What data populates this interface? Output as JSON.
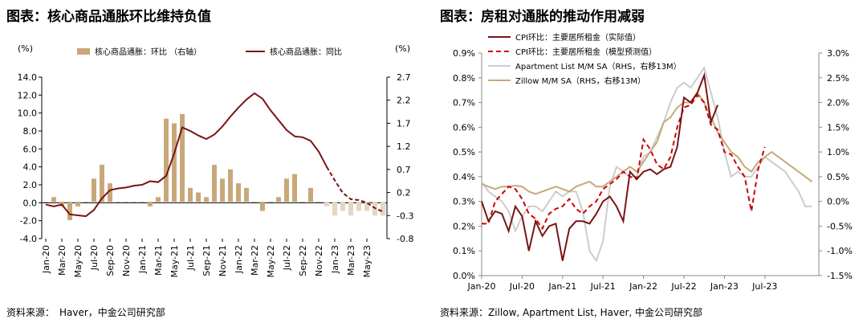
{
  "left": {
    "title": "图表：核心商品通胀环比维持负值",
    "source": "资料来源：　Haver，中金公司研究部",
    "chart_data": {
      "type": "bar+line",
      "unit_left": "(%)",
      "unit_right": "(%)",
      "ylim_left": [
        -4,
        14
      ],
      "yticks_left": [
        "14.0",
        "12.0",
        "10.0",
        "8.0",
        "6.0",
        "4.0",
        "2.0",
        "0.0",
        "-2.0",
        "-4.0"
      ],
      "yticks_left_values": [
        14,
        12,
        10,
        8,
        6,
        4,
        2,
        0,
        -2,
        -4
      ],
      "ylim_right": [
        -0.8,
        2.7
      ],
      "yticks_right": [
        "2.7",
        "2.2",
        "1.7",
        "1.2",
        "0.7",
        "0.2",
        "-0.3",
        "-0.8"
      ],
      "yticks_right_values": [
        2.7,
        2.2,
        1.7,
        1.2,
        0.7,
        0.2,
        -0.3,
        -0.8
      ],
      "x_labels": [
        "Jan-20",
        "Mar-20",
        "May-20",
        "Jul-20",
        "Sep-20",
        "Nov-20",
        "Jan-21",
        "Mar-21",
        "May-21",
        "Jul-21",
        "Sep-21",
        "Nov-21",
        "Jan-22",
        "Mar-22",
        "May-22",
        "Jul-22",
        "Sep-22",
        "Nov-22",
        "Jan-23",
        "Mar-23",
        "May-23"
      ],
      "x_label_index": [
        0,
        2,
        4,
        6,
        8,
        10,
        12,
        14,
        16,
        18,
        20,
        22,
        24,
        26,
        28,
        30,
        32,
        34,
        36,
        38,
        40
      ],
      "n_months": 43,
      "legend": [
        "核心商品通胀：环比 （右轴）",
        "核心商品通胀：同比"
      ],
      "bar_values": [
        0.0,
        0.1,
        -0.1,
        -0.4,
        -0.1,
        0.0,
        0.5,
        0.8,
        0.4,
        0.0,
        0.0,
        0.0,
        0.0,
        -0.1,
        0.1,
        1.8,
        1.7,
        1.9,
        0.3,
        0.2,
        0.1,
        0.8,
        0.5,
        0.7,
        0.4,
        0.3,
        0.0,
        -0.2,
        0.0,
        0.1,
        0.5,
        0.6,
        0.0,
        0.3,
        0.0,
        -0.1,
        -0.3,
        -0.2,
        -0.3,
        -0.2,
        -0.2,
        -0.3,
        -0.3
      ],
      "line_values": [
        -0.2,
        -0.4,
        -0.2,
        -1.3,
        -1.4,
        -1.5,
        -0.8,
        0.5,
        1.4,
        1.6,
        1.7,
        1.9,
        2.0,
        2.4,
        2.3,
        3.0,
        5.5,
        8.4,
        8.0,
        7.5,
        7.1,
        7.6,
        8.5,
        9.6,
        10.6,
        11.5,
        12.2,
        11.6,
        10.3,
        9.2,
        8.1,
        7.4,
        7.3,
        6.9,
        5.7,
        4.0,
        2.5,
        1.1,
        0.4,
        0.3,
        0.0,
        -0.6,
        -1.0
      ],
      "line_dashed_from_index": 35,
      "bar_faded_from_index": 35,
      "colors": {
        "bar": "#c8a87a",
        "bar_faded": "#e4d6c0",
        "line": "#7a1414"
      }
    }
  },
  "right": {
    "title": "图表：房租对通胀的推动作用减弱",
    "source": "资料来源：Zillow, Apartment List, Haver, 中金公司研究部",
    "chart_data": {
      "type": "line",
      "ylim_left": [
        0.0,
        0.9
      ],
      "yticks_left": [
        "0.9%",
        "0.8%",
        "0.7%",
        "0.6%",
        "0.5%",
        "0.4%",
        "0.3%",
        "0.2%",
        "0.1%",
        "0.0%"
      ],
      "yticks_left_values": [
        0.9,
        0.8,
        0.7,
        0.6,
        0.5,
        0.4,
        0.3,
        0.2,
        0.1,
        0.0
      ],
      "ylim_right": [
        -1.5,
        3.0
      ],
      "yticks_right": [
        "3.0%",
        "2.5%",
        "2.0%",
        "1.5%",
        "1.0%",
        "0.5%",
        "0.0%",
        "-0.5%",
        "-1.0%",
        "-1.5%"
      ],
      "yticks_right_values": [
        3.0,
        2.5,
        2.0,
        1.5,
        1.0,
        0.5,
        0.0,
        -0.5,
        -1.0,
        -1.5
      ],
      "x_labels": [
        "Jan-20",
        "Jul-20",
        "Jan-21",
        "Jul-21",
        "Jan-22",
        "Jul-22",
        "Jan-23",
        "Jul-23"
      ],
      "x_label_index": [
        0,
        6,
        12,
        18,
        24,
        30,
        36,
        42
      ],
      "n_months": 50,
      "series": [
        {
          "name": "CPI环比：主要居所租金（实际值）",
          "axis": "left",
          "style": "solid",
          "color": "#7a1414",
          "start": 0,
          "values": [
            0.3,
            0.22,
            0.26,
            0.25,
            0.18,
            0.28,
            0.24,
            0.1,
            0.22,
            0.16,
            0.2,
            0.21,
            0.06,
            0.19,
            0.22,
            0.22,
            0.21,
            0.25,
            0.3,
            0.32,
            0.28,
            0.22,
            0.42,
            0.39,
            0.42,
            0.43,
            0.41,
            0.43,
            0.44,
            0.52,
            0.72,
            0.7,
            0.74,
            0.81,
            0.62,
            0.69
          ]
        },
        {
          "name": "CPI环比：主要居所租金（模型预测值）",
          "axis": "left",
          "style": "dashed",
          "color": "#cc0000",
          "start": 0,
          "values": [
            0.21,
            0.21,
            0.3,
            0.33,
            0.36,
            0.35,
            0.31,
            0.25,
            0.23,
            0.19,
            0.25,
            0.27,
            0.28,
            0.31,
            0.27,
            0.25,
            0.28,
            0.3,
            0.35,
            0.37,
            0.39,
            0.42,
            0.4,
            0.39,
            0.55,
            0.51,
            0.45,
            0.43,
            0.48,
            0.6,
            0.68,
            0.69,
            0.73,
            0.7,
            0.61,
            0.59,
            0.5,
            0.49,
            0.44,
            0.4,
            0.26,
            0.43,
            0.52
          ]
        },
        {
          "name": "Apartment List  M/M SA（RHS，右移13M）",
          "axis": "right",
          "style": "solid",
          "color": "#cccccc",
          "start": 0,
          "values": [
            0.4,
            0.2,
            0.1,
            0.0,
            -0.2,
            -0.6,
            -0.3,
            -0.1,
            -0.1,
            -0.2,
            0.0,
            0.2,
            0.1,
            0.2,
            0.2,
            -0.2,
            -1.0,
            -1.2,
            -0.8,
            0.3,
            0.7,
            0.6,
            0.5,
            0.5,
            0.9,
            1.0,
            1.3,
            1.6,
            2.0,
            2.3,
            2.4,
            2.3,
            2.5,
            2.7,
            2.2,
            1.7,
            1.0,
            0.5,
            0.6,
            0.5,
            0.5,
            0.7,
            0.9,
            0.8,
            0.7,
            0.6,
            0.4,
            0.2,
            -0.1,
            -0.1
          ]
        },
        {
          "name": "Zillow M/M SA（RHS，右移13M）",
          "axis": "right",
          "style": "solid",
          "color": "#c8a87a",
          "start": 0,
          "values": [
            0.35,
            0.3,
            0.25,
            0.3,
            0.3,
            0.32,
            0.3,
            0.2,
            0.15,
            0.2,
            0.25,
            0.3,
            0.25,
            0.2,
            0.3,
            0.35,
            0.4,
            0.3,
            0.3,
            0.4,
            0.5,
            0.6,
            0.7,
            0.6,
            0.8,
            1.0,
            1.2,
            1.6,
            1.7,
            1.9,
            2.0,
            2.0,
            2.2,
            2.0,
            1.7,
            1.4,
            1.2,
            1.0,
            0.9,
            0.7,
            0.6,
            0.8,
            0.9,
            1.0,
            0.9,
            0.8,
            0.7,
            0.6,
            0.5,
            0.4
          ]
        }
      ]
    }
  }
}
